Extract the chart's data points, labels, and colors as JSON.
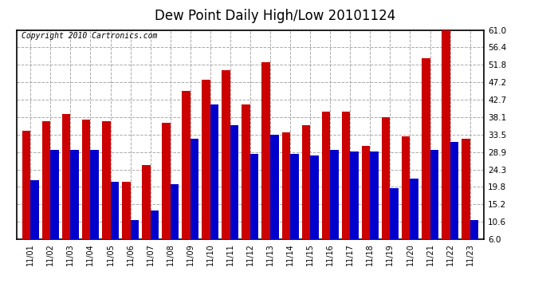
{
  "title": "Dew Point Daily High/Low 20101124",
  "copyright": "Copyright 2010 Cartronics.com",
  "dates": [
    "11/01",
    "11/02",
    "11/03",
    "11/04",
    "11/05",
    "11/06",
    "11/07",
    "11/08",
    "11/09",
    "11/10",
    "11/11",
    "11/12",
    "11/13",
    "11/14",
    "11/15",
    "11/16",
    "11/17",
    "11/18",
    "11/19",
    "11/20",
    "11/21",
    "11/22",
    "11/23"
  ],
  "highs": [
    34.5,
    37.0,
    39.0,
    37.5,
    37.0,
    21.0,
    25.5,
    36.5,
    45.0,
    48.0,
    50.5,
    41.5,
    52.5,
    34.0,
    36.0,
    39.5,
    39.5,
    30.5,
    38.0,
    33.0,
    53.5,
    61.5,
    32.5
  ],
  "lows": [
    21.5,
    29.5,
    29.5,
    29.5,
    21.0,
    11.0,
    13.5,
    20.5,
    32.5,
    41.5,
    36.0,
    28.5,
    33.5,
    28.5,
    28.0,
    29.5,
    29.0,
    29.0,
    19.5,
    22.0,
    29.5,
    31.5,
    11.0
  ],
  "high_color": "#cc0000",
  "low_color": "#0000cc",
  "ylim": [
    6.0,
    61.0
  ],
  "yticks": [
    6.0,
    10.6,
    15.2,
    19.8,
    24.3,
    28.9,
    33.5,
    38.1,
    42.7,
    47.2,
    51.8,
    56.4,
    61.0
  ],
  "ytick_labels": [
    "6.0",
    "10.6",
    "15.2",
    "19.8",
    "24.3",
    "28.9",
    "33.5",
    "38.1",
    "42.7",
    "47.2",
    "51.8",
    "56.4",
    "61.0"
  ],
  "grid_color": "#aaaaaa",
  "bg_color": "#ffffff",
  "bar_width": 0.42,
  "title_fontsize": 12,
  "copyright_fontsize": 7,
  "tick_fontsize": 7,
  "ytick_fontsize": 7.5,
  "figsize": [
    6.9,
    3.75
  ],
  "dpi": 100
}
